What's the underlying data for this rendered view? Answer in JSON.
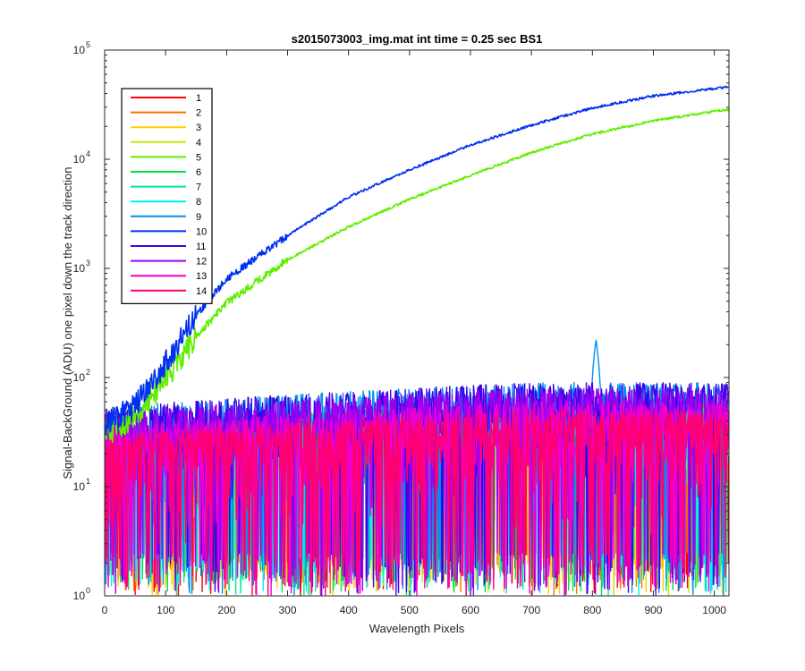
{
  "chart_data": {
    "type": "line",
    "title": "s2015073003_img.mat int time = 0.25 sec   BS1",
    "xlabel": "Wavelength Pixels",
    "ylabel": "Signal-BackGround (ADU) one pixel down the track direction",
    "xlim": [
      0,
      1024
    ],
    "ylim": [
      1,
      100000
    ],
    "yscale": "log",
    "xticks": [
      0,
      100,
      200,
      300,
      400,
      500,
      600,
      700,
      800,
      900,
      1000
    ],
    "xtick_labels": [
      "0",
      "100",
      "200",
      "300",
      "400",
      "500",
      "600",
      "700",
      "800",
      "900",
      "1000"
    ],
    "yticks": [
      1,
      10,
      100,
      1000,
      10000,
      100000
    ],
    "ytick_labels": [
      {
        "base": "10",
        "exp": "0"
      },
      {
        "base": "10",
        "exp": "1"
      },
      {
        "base": "10",
        "exp": "2"
      },
      {
        "base": "10",
        "exp": "3"
      },
      {
        "base": "10",
        "exp": "4"
      },
      {
        "base": "10",
        "exp": "5"
      }
    ],
    "grid": false,
    "legend_position": "top-left",
    "series": [
      {
        "name": "1",
        "color": "#ff0000",
        "kind": "noise",
        "x": [
          0,
          1023
        ],
        "y_band": [
          1,
          60
        ]
      },
      {
        "name": "2",
        "color": "#ff7000",
        "kind": "noise",
        "x": [
          0,
          1023
        ],
        "y_band": [
          1,
          60
        ]
      },
      {
        "name": "3",
        "color": "#ffd000",
        "kind": "noise",
        "x": [
          0,
          1023
        ],
        "y_band": [
          1,
          60
        ]
      },
      {
        "name": "4",
        "color": "#c8e600",
        "kind": "noise",
        "x": [
          0,
          1023
        ],
        "y_band": [
          1,
          60
        ]
      },
      {
        "name": "5",
        "color": "#60ee00",
        "kind": "signal",
        "x": [
          0,
          50,
          80,
          100,
          150,
          200,
          300,
          400,
          500,
          600,
          700,
          800,
          900,
          1000,
          1023
        ],
        "y": [
          30,
          45,
          70,
          100,
          240,
          480,
          1200,
          2400,
          4300,
          7100,
          11500,
          17000,
          22500,
          27500,
          28500
        ]
      },
      {
        "name": "6",
        "color": "#00e040",
        "kind": "noise",
        "x": [
          0,
          1023
        ],
        "y_band": [
          1,
          60
        ]
      },
      {
        "name": "7",
        "color": "#00e8a0",
        "kind": "noise",
        "x": [
          0,
          1023
        ],
        "y_band": [
          1,
          60
        ]
      },
      {
        "name": "8",
        "color": "#00f0f0",
        "kind": "noise",
        "x": [
          0,
          1023
        ],
        "y_band": [
          1,
          60
        ]
      },
      {
        "name": "9",
        "color": "#0090f0",
        "kind": "noise",
        "x": [
          0,
          1023
        ],
        "y_band": [
          1,
          90
        ],
        "peak": {
          "x": 806,
          "y": 220
        }
      },
      {
        "name": "10",
        "color": "#0030f0",
        "kind": "signal",
        "x": [
          0,
          50,
          80,
          100,
          150,
          200,
          300,
          400,
          500,
          600,
          700,
          800,
          900,
          1000,
          1023
        ],
        "y": [
          35,
          55,
          90,
          140,
          370,
          800,
          2000,
          4500,
          8000,
          13500,
          20500,
          29500,
          38000,
          44500,
          46000
        ]
      },
      {
        "name": "11",
        "color": "#4000e8",
        "kind": "noise",
        "x": [
          0,
          1023
        ],
        "y_band": [
          1,
          90
        ]
      },
      {
        "name": "12",
        "color": "#a000f0",
        "kind": "noise",
        "x": [
          0,
          1023
        ],
        "y_band": [
          1,
          80
        ]
      },
      {
        "name": "13",
        "color": "#f000d0",
        "kind": "noise",
        "x": [
          0,
          1023
        ],
        "y_band": [
          1,
          60
        ]
      },
      {
        "name": "14",
        "color": "#ff0070",
        "kind": "noise",
        "x": [
          0,
          1023
        ],
        "y_band": [
          1,
          50
        ]
      }
    ]
  }
}
